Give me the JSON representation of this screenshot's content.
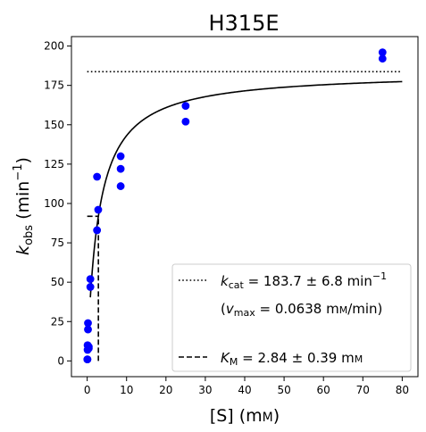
{
  "chart_data": {
    "type": "scatter",
    "title": "H315E",
    "xlabel": {
      "main": "[S] (m",
      "unit_smallcaps": "M",
      "close": ")"
    },
    "ylabel": {
      "k": "k",
      "sub": "obs",
      "mid": " (min",
      "sup": "−1",
      "close": ")"
    },
    "xlim": [
      -4,
      84
    ],
    "ylim": [
      -10,
      206
    ],
    "xticks": [
      0,
      10,
      20,
      30,
      40,
      50,
      60,
      70,
      80
    ],
    "yticks": [
      0,
      25,
      50,
      75,
      100,
      125,
      150,
      175,
      200
    ],
    "xtick_labels": [
      "0",
      "10",
      "20",
      "30",
      "40",
      "50",
      "60",
      "70",
      "80"
    ],
    "ytick_labels": [
      "0",
      "25",
      "50",
      "75",
      "100",
      "125",
      "150",
      "175",
      "200"
    ],
    "grid": false,
    "legend_position": "lower-right",
    "points": {
      "color": "#0000ff",
      "x": [
        0.05,
        0.05,
        0.1,
        0.1,
        0.2,
        0.2,
        0.4,
        0.4,
        0.8,
        0.8,
        2.5,
        2.5,
        2.8,
        8.5,
        8.5,
        8.5,
        25,
        25,
        75,
        75
      ],
      "y": [
        1,
        1,
        7,
        10,
        20,
        24,
        9,
        8,
        47,
        52,
        117,
        83,
        96,
        130,
        122,
        111,
        162,
        152,
        196,
        192
      ]
    },
    "fit_curve": {
      "type": "michaelis-menten",
      "vmax": 183.7,
      "km": 2.84,
      "x_start": 0.8,
      "x_end": 80,
      "color": "#000000"
    },
    "kcat_line": {
      "y": 183.7,
      "x_start": 0,
      "x_end": 80,
      "style": "dotted"
    },
    "km_marker": {
      "x": 2.84,
      "y_half": 91.85,
      "x_left": 0,
      "style": "dashed"
    },
    "legend": {
      "kcat": {
        "sym": "k",
        "sub": "cat",
        "rest": " = 183.7 ± 6.8 min",
        "sup": "−1"
      },
      "vmax": {
        "open": "(",
        "sym": "v",
        "sub": "max",
        "rest": " = 0.0638 m",
        "unit_smallcaps": "M",
        "close": "/min)"
      },
      "km": {
        "sym": "K",
        "sub": "M",
        "rest": " = 2.84 ± 0.39 m",
        "unit_smallcaps": "M"
      }
    }
  }
}
